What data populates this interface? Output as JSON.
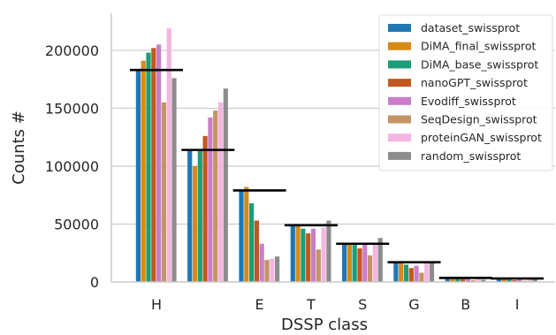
{
  "chart_data": {
    "type": "bar",
    "xlabel": "DSSP class",
    "ylabel": "Counts #",
    "ylim": [
      0,
      232000
    ],
    "yticks": [
      0,
      50000,
      100000,
      150000,
      200000
    ],
    "grid": "horizontal",
    "legend_position": "top-right",
    "categories": [
      "H",
      "",
      "E",
      "T",
      "S",
      "G",
      "B",
      "I"
    ],
    "series": [
      {
        "name": "dataset_swissprot",
        "color": "#1f77b4",
        "values": [
          183000,
          114000,
          79000,
          49000,
          33000,
          17000,
          3500,
          2500
        ]
      },
      {
        "name": "DiMA_final_swissprot",
        "color": "#d68a17",
        "values": [
          191000,
          100000,
          82000,
          50000,
          33000,
          16000,
          3000,
          2000
        ]
      },
      {
        "name": "DiMA_base_swissprot",
        "color": "#1b9e77",
        "values": [
          198000,
          113000,
          68000,
          46000,
          32000,
          15000,
          3000,
          2000
        ]
      },
      {
        "name": "nanoGPT_swissprot",
        "color": "#c0591f",
        "values": [
          202000,
          126000,
          53000,
          42000,
          29000,
          12000,
          2500,
          1500
        ]
      },
      {
        "name": "Evodiff_swissprot",
        "color": "#c97ec8",
        "values": [
          205000,
          142000,
          33000,
          46000,
          32000,
          14000,
          2500,
          2000
        ]
      },
      {
        "name": "SeqDesign_swissprot",
        "color": "#c49466",
        "values": [
          155000,
          148000,
          19000,
          28000,
          23000,
          8000,
          1500,
          1000
        ]
      },
      {
        "name": "proteinGAN_swissprot",
        "color": "#f2b6e0",
        "values": [
          219000,
          155000,
          20000,
          47000,
          33000,
          18000,
          3000,
          2500
        ]
      },
      {
        "name": "random_swissprot",
        "color": "#8c8c8c",
        "values": [
          176000,
          167000,
          22000,
          53000,
          38000,
          17000,
          2000,
          2500
        ]
      }
    ],
    "reference_lines": [
      183000,
      114000,
      79000,
      49000,
      33000,
      17000,
      3500,
      3000
    ]
  }
}
